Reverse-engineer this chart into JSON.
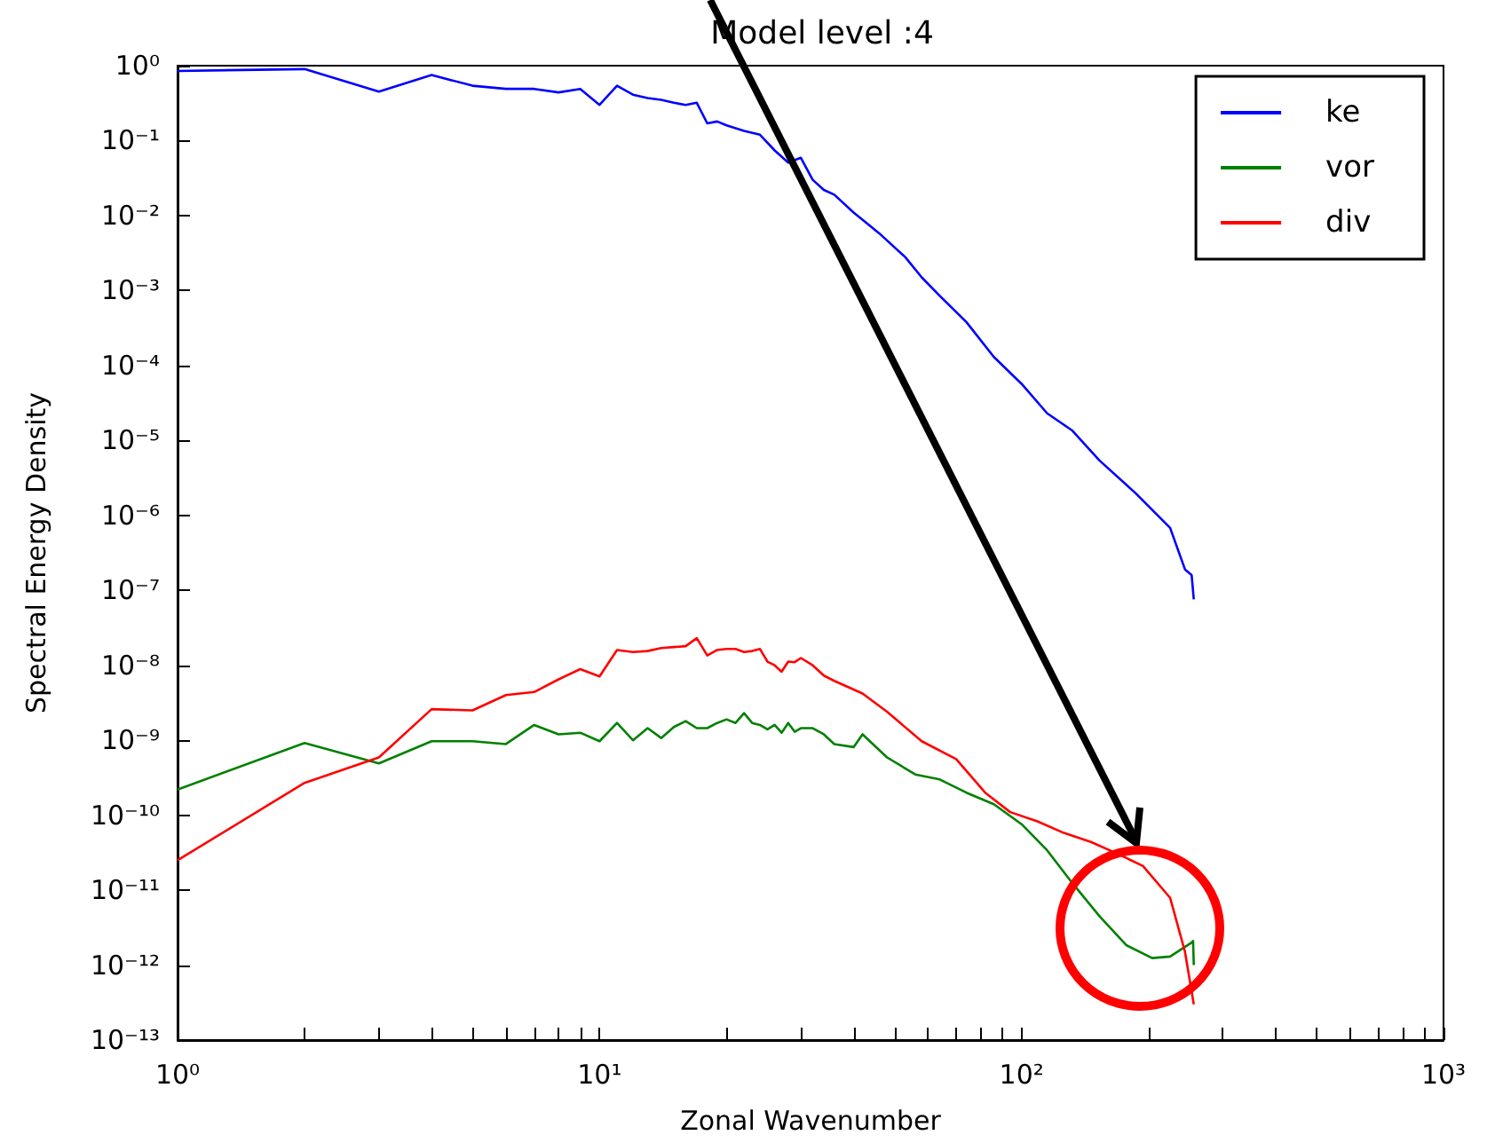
{
  "chart_data": {
    "type": "line",
    "title": "Model level :4",
    "xlabel": "Zonal Wavenumber",
    "ylabel": "Spectral Energy Density",
    "log": "xy",
    "grid": false,
    "legend": "top right",
    "xlim": [
      1,
      1000
    ],
    "ylim": [
      1e-13,
      1
    ],
    "xticks": [
      {
        "value": 1,
        "label": "10⁰"
      },
      {
        "value": 2,
        "label": null
      },
      {
        "value": 3,
        "label": null
      },
      {
        "value": 4,
        "label": null
      },
      {
        "value": 5,
        "label": null
      },
      {
        "value": 6,
        "label": null
      },
      {
        "value": 7,
        "label": null
      },
      {
        "value": 8,
        "label": null
      },
      {
        "value": 9,
        "label": null
      },
      {
        "value": 10,
        "label": "10¹"
      },
      {
        "value": 20,
        "label": null
      },
      {
        "value": 30,
        "label": null
      },
      {
        "value": 40,
        "label": null
      },
      {
        "value": 50,
        "label": null
      },
      {
        "value": 60,
        "label": null
      },
      {
        "value": 70,
        "label": null
      },
      {
        "value": 80,
        "label": null
      },
      {
        "value": 90,
        "label": null
      },
      {
        "value": 100,
        "label": "10²"
      },
      {
        "value": 200,
        "label": null
      },
      {
        "value": 300,
        "label": null
      },
      {
        "value": 400,
        "label": null
      },
      {
        "value": 500,
        "label": null
      },
      {
        "value": 600,
        "label": null
      },
      {
        "value": 700,
        "label": null
      },
      {
        "value": 800,
        "label": null
      },
      {
        "value": 900,
        "label": null
      },
      {
        "value": 1000,
        "label": "10³"
      }
    ],
    "yticks": [
      {
        "value": 1e-13,
        "label": "10⁻¹³"
      },
      {
        "value": 1e-12,
        "label": "10⁻¹²"
      },
      {
        "value": 1e-11,
        "label": "10⁻¹¹"
      },
      {
        "value": 1e-10,
        "label": "10⁻¹⁰"
      },
      {
        "value": 1e-09,
        "label": "10⁻⁹"
      },
      {
        "value": 1e-08,
        "label": "10⁻⁸"
      },
      {
        "value": 1e-07,
        "label": "10⁻⁷"
      },
      {
        "value": 1e-06,
        "label": "10⁻⁶"
      },
      {
        "value": 1e-05,
        "label": "10⁻⁵"
      },
      {
        "value": 0.0001,
        "label": "10⁻⁴"
      },
      {
        "value": 0.001,
        "label": "10⁻³"
      },
      {
        "value": 0.01,
        "label": "10⁻²"
      },
      {
        "value": 0.1,
        "label": "10⁻¹"
      },
      {
        "value": 1,
        "label": "10⁰"
      }
    ],
    "series": [
      {
        "name": "ke",
        "color": "#0000ff",
        "x": [
          1,
          2,
          3,
          4,
          5,
          6,
          7,
          8,
          9,
          10,
          11,
          12,
          13,
          14,
          15,
          16,
          17,
          18,
          19,
          20,
          22,
          24,
          26,
          28,
          30,
          32,
          34,
          36,
          40,
          46,
          53,
          58,
          64,
          74,
          86,
          100,
          115,
          132,
          153,
          186,
          225,
          244,
          253,
          256
        ],
        "values": [
          0.85,
          0.9,
          0.45,
          0.75,
          0.54,
          0.49,
          0.49,
          0.44,
          0.49,
          0.3,
          0.54,
          0.41,
          0.37,
          0.35,
          0.32,
          0.3,
          0.32,
          0.17,
          0.18,
          0.16,
          0.135,
          0.12,
          0.074,
          0.051,
          0.059,
          0.03,
          0.022,
          0.019,
          0.011,
          0.0058,
          0.0028,
          0.0015,
          0.00085,
          0.00038,
          0.00013,
          5.7e-05,
          2.3e-05,
          1.35e-05,
          5.4e-06,
          2e-06,
          6.8e-07,
          1.9e-07,
          1.6e-07,
          7.6e-08
        ]
      },
      {
        "name": "vor",
        "color": "#008000",
        "x": [
          1,
          2,
          3,
          4,
          5,
          6,
          7,
          8,
          9,
          10,
          11,
          12,
          13,
          14,
          15,
          16,
          17,
          18,
          19,
          20,
          21,
          22,
          23,
          24,
          25,
          26,
          27,
          28,
          29,
          30,
          32,
          34,
          36,
          40,
          42,
          48,
          56,
          64,
          74,
          86,
          100,
          115,
          132,
          153,
          177,
          204,
          225,
          253,
          255,
          256
        ],
        "values": [
          2.2e-10,
          9.2e-10,
          4.9e-10,
          9.7e-10,
          9.7e-10,
          8.9e-10,
          1.6e-09,
          1.2e-09,
          1.26e-09,
          9.7e-10,
          1.7e-09,
          1e-09,
          1.45e-09,
          1.07e-09,
          1.5e-09,
          1.8e-09,
          1.45e-09,
          1.45e-09,
          1.7e-09,
          1.9e-09,
          1.7e-09,
          2.3e-09,
          1.7e-09,
          1.6e-09,
          1.4e-09,
          1.6e-09,
          1.26e-09,
          1.7e-09,
          1.3e-09,
          1.45e-09,
          1.45e-09,
          1.2e-09,
          8.9e-10,
          8.1e-10,
          1.2e-09,
          5.9e-10,
          3.5e-10,
          3e-10,
          2e-10,
          1.4e-10,
          7.6e-11,
          3.4e-11,
          1.24e-11,
          4.5e-12,
          1.85e-12,
          1.24e-12,
          1.3e-12,
          2e-12,
          2.1e-12,
          1e-12
        ]
      },
      {
        "name": "div",
        "color": "#ff0000",
        "x": [
          1,
          2,
          3,
          4,
          5,
          6,
          7,
          8,
          9,
          10,
          11,
          12,
          13,
          14,
          15,
          16,
          17,
          18,
          19,
          20,
          21,
          22,
          23,
          24,
          25,
          26,
          27,
          28,
          29,
          30,
          32,
          34,
          36,
          42,
          48,
          58,
          70,
          82,
          94,
          109,
          126,
          146,
          168,
          194,
          225,
          244,
          256
        ],
        "values": [
          2.5e-11,
          2.7e-10,
          5.9e-10,
          2.6e-09,
          2.5e-09,
          4e-09,
          4.4e-09,
          6.5e-09,
          8.9e-09,
          7.1e-09,
          1.6e-08,
          1.5e-08,
          1.55e-08,
          1.7e-08,
          1.75e-08,
          1.8e-08,
          2.3e-08,
          1.35e-08,
          1.6e-08,
          1.65e-08,
          1.65e-08,
          1.5e-08,
          1.55e-08,
          1.65e-08,
          1.12e-08,
          1e-08,
          8.2e-09,
          1.12e-08,
          1.1e-08,
          1.25e-08,
          1e-08,
          7.3e-09,
          6.2e-09,
          4.2e-09,
          2.4e-09,
          9.7e-10,
          5.6e-10,
          2e-10,
          1.1e-10,
          8.3e-11,
          5.8e-11,
          4.4e-11,
          3.1e-11,
          2.1e-11,
          7.9e-12,
          1.5e-12,
          3e-13
        ]
      }
    ]
  }
}
